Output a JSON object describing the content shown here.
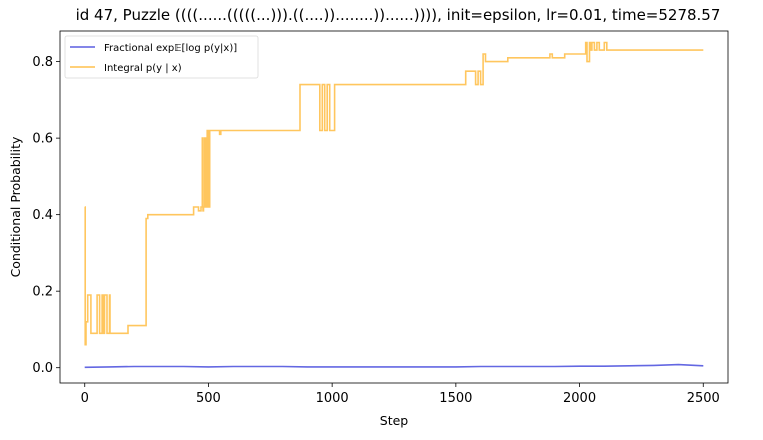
{
  "chart_data": {
    "type": "line",
    "title": "id 47, Puzzle ((((......(((((...))).((....))........))......)))), init=epsilon, lr=0.01, time=5278.57",
    "xlabel": "Step",
    "ylabel": "Conditional Probability",
    "xlim": [
      -100,
      2600
    ],
    "ylim": [
      -0.04,
      0.88
    ],
    "xticks": [
      0,
      500,
      1000,
      1500,
      2000,
      2500
    ],
    "yticks": [
      0.0,
      0.2,
      0.4,
      0.6,
      0.8
    ],
    "xtick_labels": [
      "0",
      "500",
      "1000",
      "1500",
      "2000",
      "2500"
    ],
    "ytick_labels": [
      "0.0",
      "0.2",
      "0.4",
      "0.6",
      "0.8"
    ],
    "grid": false,
    "legend_position": "top-left",
    "series": [
      {
        "name": "Fractional exp𝔼[log p(y|x)]",
        "color": "#5b5fe0",
        "x": [
          0,
          100,
          200,
          300,
          400,
          500,
          600,
          700,
          800,
          900,
          1000,
          1100,
          1200,
          1300,
          1400,
          1500,
          1600,
          1700,
          1800,
          1900,
          2000,
          2100,
          2200,
          2300,
          2400,
          2500
        ],
        "y": [
          0.001,
          0.002,
          0.003,
          0.003,
          0.003,
          0.002,
          0.003,
          0.003,
          0.003,
          0.002,
          0.002,
          0.002,
          0.002,
          0.002,
          0.002,
          0.002,
          0.003,
          0.003,
          0.003,
          0.003,
          0.004,
          0.004,
          0.005,
          0.006,
          0.008,
          0.005
        ]
      },
      {
        "name": "Integral p(y | x)",
        "color": "#ffc04d",
        "x": [
          0,
          2,
          5,
          12,
          25,
          28,
          50,
          60,
          70,
          75,
          80,
          90,
          100,
          102,
          170,
          175,
          200,
          240,
          248,
          255,
          260,
          430,
          440,
          455,
          460,
          470,
          475,
          478,
          480,
          485,
          490,
          495,
          500,
          505,
          510,
          520,
          540,
          545,
          550,
          555,
          560,
          860,
          870,
          940,
          950,
          960,
          970,
          980,
          990,
          1010,
          1530,
          1540,
          1570,
          1580,
          1590,
          1600,
          1610,
          1620,
          1630,
          1700,
          1710,
          1870,
          1880,
          1890,
          1940,
          1945,
          2020,
          2025,
          2030,
          2040,
          2045,
          2050,
          2060,
          2070,
          2080,
          2100,
          2110,
          2500
        ],
        "y": [
          0.42,
          0.06,
          0.12,
          0.19,
          0.09,
          0.09,
          0.19,
          0.09,
          0.19,
          0.09,
          0.19,
          0.09,
          0.19,
          0.09,
          0.09,
          0.11,
          0.11,
          0.11,
          0.39,
          0.4,
          0.4,
          0.4,
          0.42,
          0.42,
          0.41,
          0.42,
          0.6,
          0.41,
          0.42,
          0.6,
          0.42,
          0.62,
          0.42,
          0.62,
          0.62,
          0.62,
          0.62,
          0.61,
          0.62,
          0.62,
          0.62,
          0.62,
          0.74,
          0.74,
          0.62,
          0.74,
          0.62,
          0.74,
          0.62,
          0.74,
          0.74,
          0.775,
          0.775,
          0.74,
          0.775,
          0.74,
          0.82,
          0.8,
          0.8,
          0.8,
          0.81,
          0.81,
          0.82,
          0.81,
          0.82,
          0.82,
          0.82,
          0.85,
          0.8,
          0.85,
          0.83,
          0.85,
          0.83,
          0.85,
          0.83,
          0.85,
          0.83,
          0.83
        ]
      }
    ]
  }
}
